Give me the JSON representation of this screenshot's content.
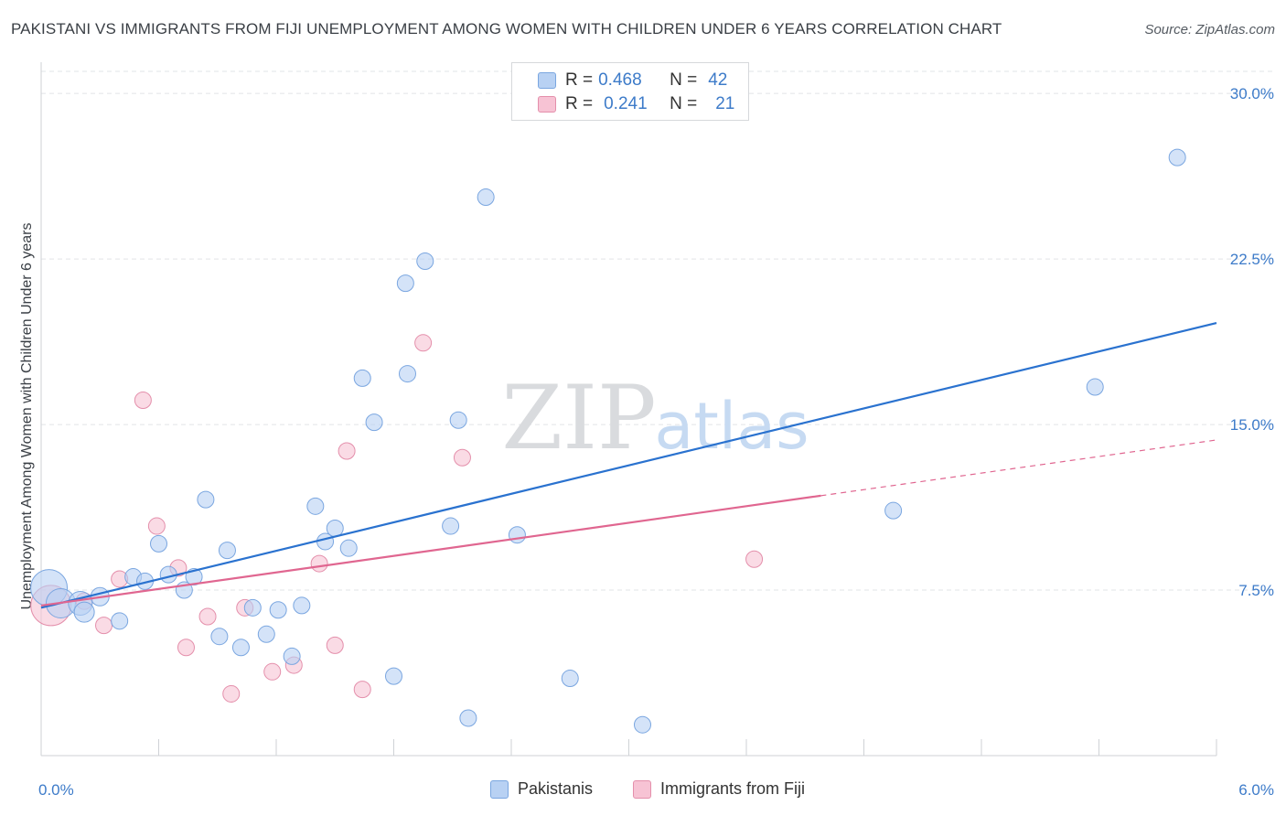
{
  "header": {
    "title": "PAKISTANI VS IMMIGRANTS FROM FIJI UNEMPLOYMENT AMONG WOMEN WITH CHILDREN UNDER 6 YEARS CORRELATION CHART",
    "source": "Source: ZipAtlas.com"
  },
  "watermark": {
    "zip": "ZIP",
    "atlas": "atlas"
  },
  "colors": {
    "blue_fill": "#b8d1f3",
    "blue_stroke": "#7aa6e0",
    "blue_line": "#2a72cf",
    "pink_fill": "#f7c3d4",
    "pink_stroke": "#e48fab",
    "pink_line": "#e06690",
    "tick": "#3d7bc9",
    "grid": "#e2e4e7"
  },
  "legend": {
    "rows": [
      {
        "r_label": "R =",
        "r_value": "0.468",
        "n_label": "N =",
        "n_value": "42"
      },
      {
        "r_label": "R =",
        "r_value": "0.241",
        "n_label": "N =",
        "n_value": "21"
      }
    ]
  },
  "chart_data": {
    "type": "scatter",
    "title": "PAKISTANI VS IMMIGRANTS FROM FIJI UNEMPLOYMENT AMONG WOMEN WITH CHILDREN UNDER 6 YEARS CORRELATION CHART",
    "xlabel": "",
    "ylabel": "Unemployment Among Women with Children Under 6 years",
    "xlim": [
      0,
      6
    ],
    "ylim": [
      0,
      31
    ],
    "x_tick_labels": [
      "0.0%",
      "6.0%"
    ],
    "y_ticks": [
      7.5,
      15,
      22.5,
      30
    ],
    "y_tick_labels": [
      "7.5%",
      "15.0%",
      "22.5%",
      "30.0%"
    ],
    "grid": true,
    "series": [
      {
        "name": "Pakistanis",
        "R": 0.468,
        "N": 42,
        "trend": {
          "x0": 0.0,
          "y0": 6.7,
          "x1": 6.0,
          "y1": 19.6,
          "dashed_from": null
        },
        "points": [
          {
            "x": 0.04,
            "y": 7.6,
            "s": 20
          },
          {
            "x": 0.1,
            "y": 6.9,
            "s": 16
          },
          {
            "x": 0.2,
            "y": 6.9,
            "s": 13
          },
          {
            "x": 0.22,
            "y": 6.5,
            "s": 11
          },
          {
            "x": 0.3,
            "y": 7.2,
            "s": 10
          },
          {
            "x": 0.4,
            "y": 6.1,
            "s": 9
          },
          {
            "x": 0.47,
            "y": 8.1,
            "s": 9
          },
          {
            "x": 0.53,
            "y": 7.9,
            "s": 9
          },
          {
            "x": 0.6,
            "y": 9.6,
            "s": 9
          },
          {
            "x": 0.65,
            "y": 8.2,
            "s": 9
          },
          {
            "x": 0.73,
            "y": 7.5,
            "s": 9
          },
          {
            "x": 0.78,
            "y": 8.1,
            "s": 9
          },
          {
            "x": 0.84,
            "y": 11.6,
            "s": 9
          },
          {
            "x": 0.91,
            "y": 5.4,
            "s": 9
          },
          {
            "x": 0.95,
            "y": 9.3,
            "s": 9
          },
          {
            "x": 1.02,
            "y": 4.9,
            "s": 9
          },
          {
            "x": 1.08,
            "y": 6.7,
            "s": 9
          },
          {
            "x": 1.15,
            "y": 5.5,
            "s": 9
          },
          {
            "x": 1.21,
            "y": 6.6,
            "s": 9
          },
          {
            "x": 1.28,
            "y": 4.5,
            "s": 9
          },
          {
            "x": 1.33,
            "y": 6.8,
            "s": 9
          },
          {
            "x": 1.4,
            "y": 11.3,
            "s": 9
          },
          {
            "x": 1.45,
            "y": 9.7,
            "s": 9
          },
          {
            "x": 1.5,
            "y": 10.3,
            "s": 9
          },
          {
            "x": 1.57,
            "y": 9.4,
            "s": 9
          },
          {
            "x": 1.64,
            "y": 17.1,
            "s": 9
          },
          {
            "x": 1.7,
            "y": 15.1,
            "s": 9
          },
          {
            "x": 1.8,
            "y": 3.6,
            "s": 9
          },
          {
            "x": 1.86,
            "y": 21.4,
            "s": 9
          },
          {
            "x": 1.87,
            "y": 17.3,
            "s": 9
          },
          {
            "x": 1.96,
            "y": 22.4,
            "s": 9
          },
          {
            "x": 2.09,
            "y": 10.4,
            "s": 9
          },
          {
            "x": 2.13,
            "y": 15.2,
            "s": 9
          },
          {
            "x": 2.18,
            "y": 1.7,
            "s": 9
          },
          {
            "x": 2.27,
            "y": 25.3,
            "s": 9
          },
          {
            "x": 2.43,
            "y": 10.0,
            "s": 9
          },
          {
            "x": 2.7,
            "y": 3.5,
            "s": 9
          },
          {
            "x": 3.07,
            "y": 1.4,
            "s": 9
          },
          {
            "x": 4.35,
            "y": 11.1,
            "s": 9
          },
          {
            "x": 5.38,
            "y": 16.7,
            "s": 9
          },
          {
            "x": 5.8,
            "y": 27.1,
            "s": 9
          }
        ]
      },
      {
        "name": "Immigrants from Fiji",
        "R": 0.241,
        "N": 21,
        "trend": {
          "x0": 0.0,
          "y0": 6.8,
          "x1": 6.0,
          "y1": 14.3,
          "dashed_from": 3.98
        },
        "points": [
          {
            "x": 0.05,
            "y": 6.8,
            "s": 22
          },
          {
            "x": 0.22,
            "y": 7.0,
            "s": 9
          },
          {
            "x": 0.32,
            "y": 5.9,
            "s": 9
          },
          {
            "x": 0.4,
            "y": 8.0,
            "s": 9
          },
          {
            "x": 0.52,
            "y": 16.1,
            "s": 9
          },
          {
            "x": 0.59,
            "y": 10.4,
            "s": 9
          },
          {
            "x": 0.7,
            "y": 8.5,
            "s": 9
          },
          {
            "x": 0.74,
            "y": 4.9,
            "s": 9
          },
          {
            "x": 0.85,
            "y": 6.3,
            "s": 9
          },
          {
            "x": 0.97,
            "y": 2.8,
            "s": 9
          },
          {
            "x": 1.04,
            "y": 6.7,
            "s": 9
          },
          {
            "x": 1.18,
            "y": 3.8,
            "s": 9
          },
          {
            "x": 1.29,
            "y": 4.1,
            "s": 9
          },
          {
            "x": 1.42,
            "y": 8.7,
            "s": 9
          },
          {
            "x": 1.5,
            "y": 5.0,
            "s": 9
          },
          {
            "x": 1.56,
            "y": 13.8,
            "s": 9
          },
          {
            "x": 1.64,
            "y": 3.0,
            "s": 9
          },
          {
            "x": 1.95,
            "y": 18.7,
            "s": 9
          },
          {
            "x": 2.15,
            "y": 13.5,
            "s": 9
          },
          {
            "x": 3.64,
            "y": 8.9,
            "s": 9
          }
        ]
      }
    ]
  }
}
